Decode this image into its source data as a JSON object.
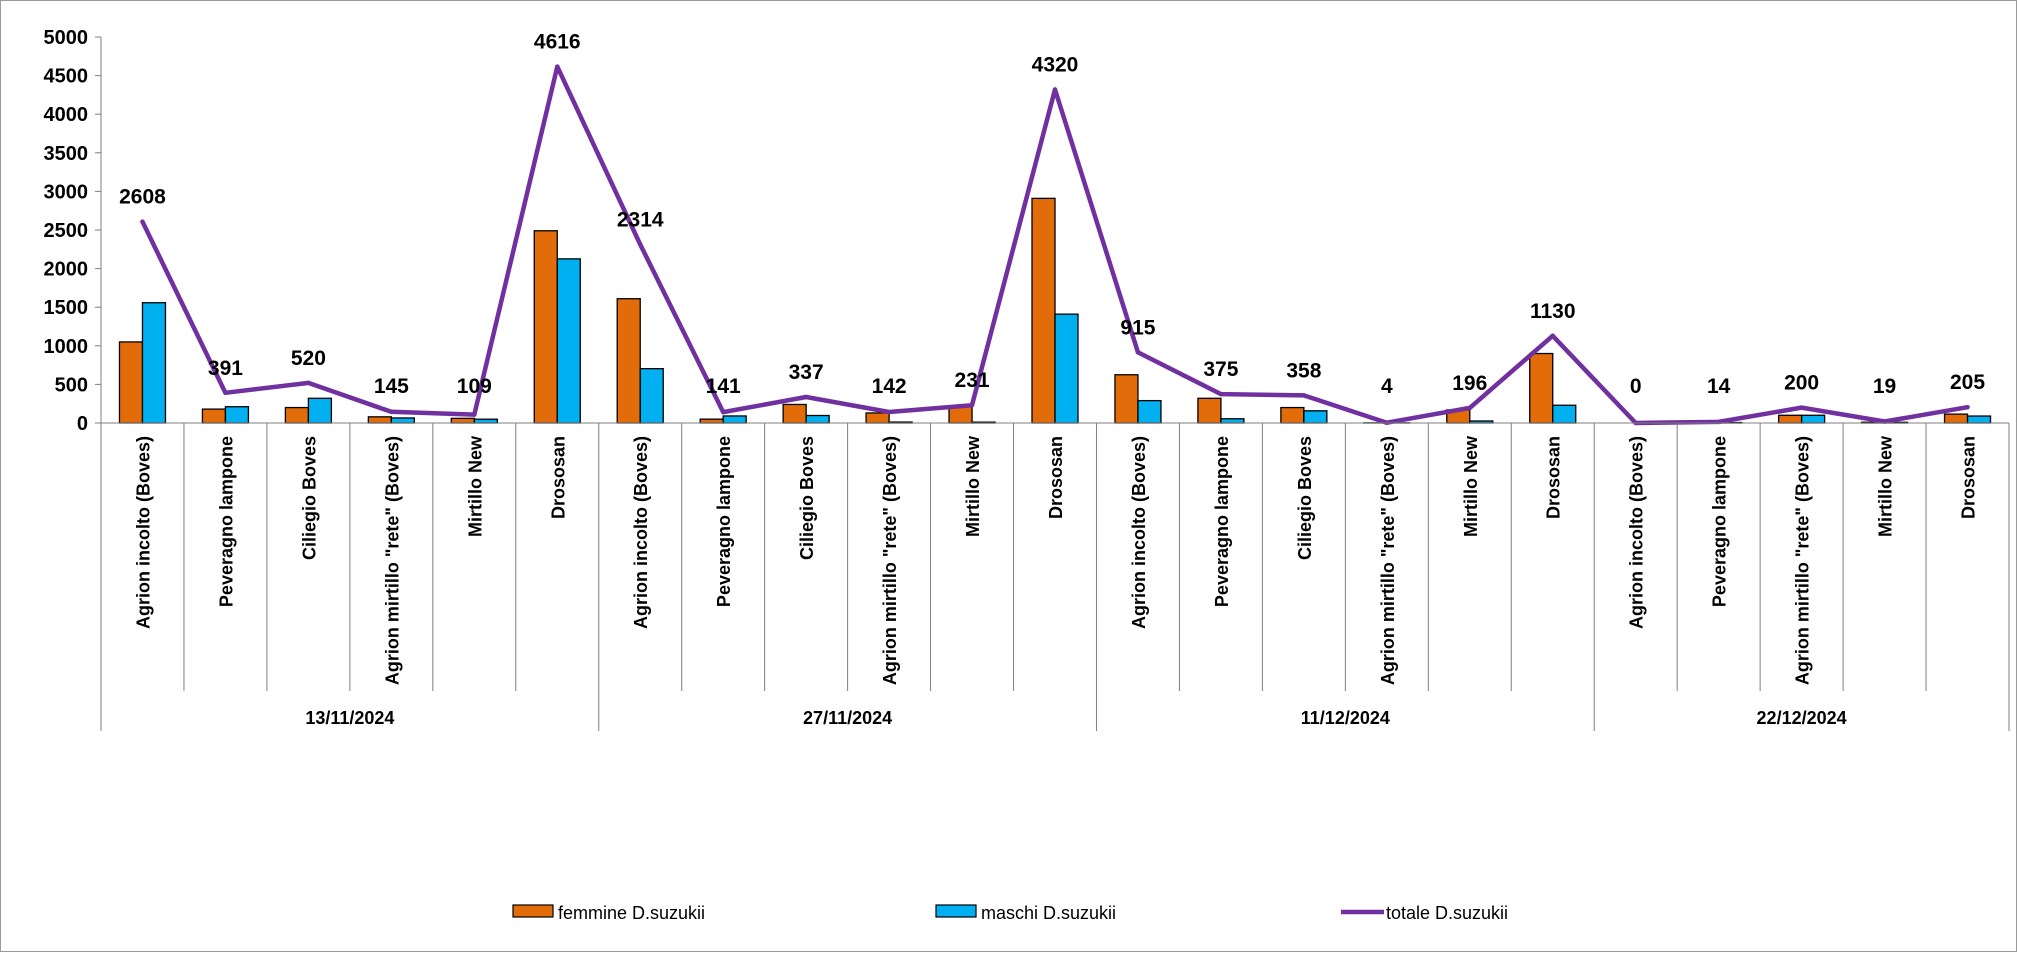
{
  "chart_data": {
    "type": "bar",
    "title": "",
    "xlabel": "",
    "ylabel": "",
    "ylim": [
      0,
      5000
    ],
    "yticks": [
      "0",
      "500",
      "1000",
      "1500",
      "2000",
      "2500",
      "3000",
      "3500",
      "4000",
      "4500",
      "5000"
    ],
    "grid": false,
    "legend_position": "bottom",
    "groups": [
      {
        "label": "13/11/2024",
        "categories": [
          "Agrion incolto (Boves)",
          "Peveragno lampone",
          "Ciliegio Boves",
          "Agrion mirtillo \"rete\" (Boves)",
          "Mirtillo New",
          "Drososan"
        ]
      },
      {
        "label": "27/11/2024",
        "categories": [
          "Agrion incolto (Boves)",
          "Peveragno lampone",
          "Ciliegio Boves",
          "Agrion mirtillo \"rete\" (Boves)",
          "Mirtillo New",
          "Drososan"
        ]
      },
      {
        "label": "11/12/2024",
        "categories": [
          "Agrion incolto (Boves)",
          "Peveragno lampone",
          "Ciliegio Boves",
          "Agrion mirtillo \"rete\" (Boves)",
          "Mirtillo New",
          "Drososan"
        ]
      },
      {
        "label": "22/12/2024",
        "categories": [
          "Agrion incolto (Boves)",
          "Peveragno lampone",
          "Agrion mirtillo \"rete\" (Boves)",
          "Mirtillo New",
          "Drososan"
        ]
      }
    ],
    "series": [
      {
        "name": "femmine D.suzukii",
        "type": "bar",
        "color": "#E36C0A",
        "values": [
          1050,
          180,
          200,
          80,
          60,
          2490,
          1610,
          50,
          240,
          130,
          220,
          2910,
          625,
          320,
          200,
          2,
          170,
          900,
          0,
          8,
          100,
          10,
          115
        ]
      },
      {
        "name": "maschi D.suzukii",
        "type": "bar",
        "color": "#00B0F0",
        "values": [
          1558,
          211,
          320,
          65,
          49,
          2126,
          704,
          91,
          97,
          12,
          11,
          1410,
          290,
          55,
          158,
          2,
          26,
          230,
          0,
          6,
          100,
          9,
          90
        ]
      },
      {
        "name": "totale D.suzukii",
        "type": "line",
        "color": "#7030A0",
        "values": [
          2608,
          391,
          520,
          145,
          109,
          4616,
          2314,
          141,
          337,
          142,
          231,
          4320,
          915,
          375,
          358,
          4,
          196,
          1130,
          0,
          14,
          200,
          19,
          205
        ]
      }
    ],
    "data_labels": [
      "2608",
      "391",
      "520",
      "145",
      "109",
      "4616",
      "2314",
      "141",
      "337",
      "142",
      "231",
      "4320",
      "915",
      "375",
      "358",
      "4",
      "196",
      "1130",
      "0",
      "14",
      "200",
      "19",
      "205"
    ]
  }
}
